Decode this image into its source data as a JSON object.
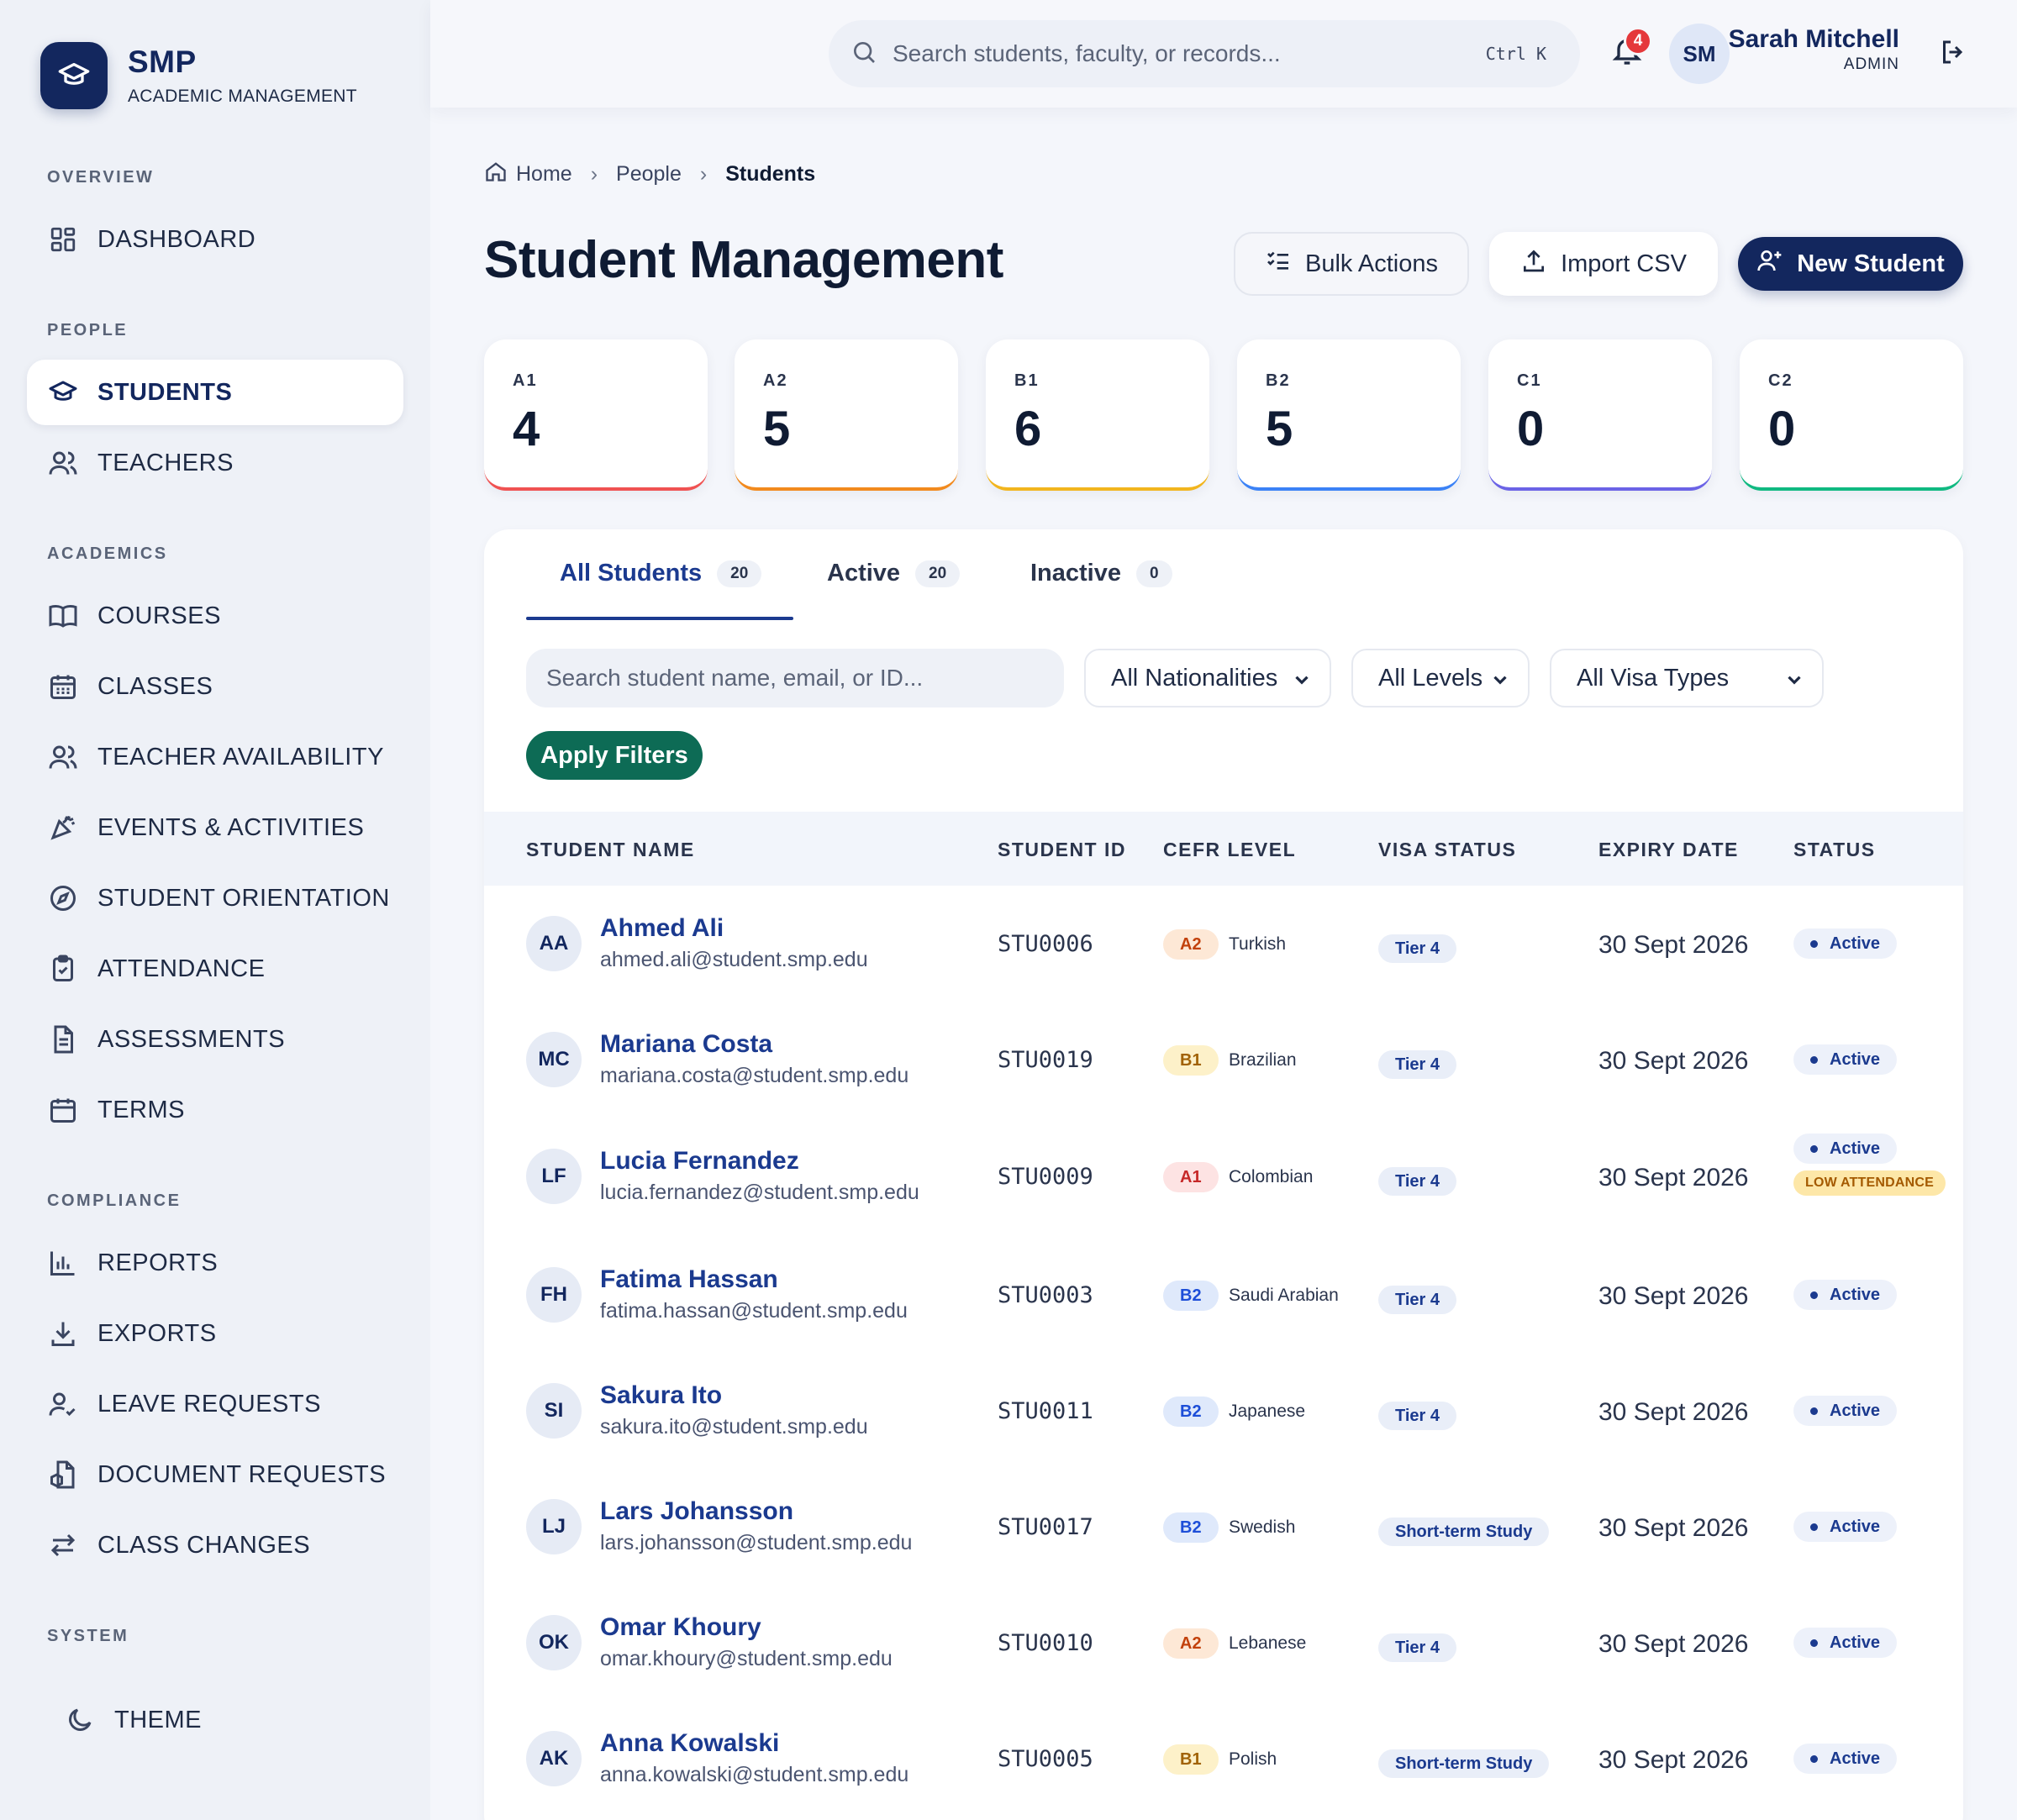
{
  "brand": {
    "name": "SMP",
    "subtitle": "ACADEMIC MANAGEMENT"
  },
  "sidebar": {
    "sections": {
      "overview": "OVERVIEW",
      "people": "PEOPLE",
      "academics": "ACADEMICS",
      "compliance": "COMPLIANCE",
      "system": "SYSTEM"
    },
    "items": {
      "dashboard": "DASHBOARD",
      "students": "STUDENTS",
      "teachers": "TEACHERS",
      "courses": "COURSES",
      "classes": "CLASSES",
      "teacher_availability": "TEACHER AVAILABILITY",
      "events": "EVENTS & ACTIVITIES",
      "orientation": "STUDENT ORIENTATION",
      "attendance": "ATTENDANCE",
      "assessments": "ASSESSMENTS",
      "terms": "TERMS",
      "reports": "REPORTS",
      "exports": "EXPORTS",
      "leave_requests": "LEAVE REQUESTS",
      "document_requests": "DOCUMENT REQUESTS",
      "class_changes": "CLASS CHANGES",
      "theme": "THEME"
    }
  },
  "topbar": {
    "search_placeholder": "Search students, faculty, or records...",
    "shortcut": "Ctrl K",
    "notification_count": "4",
    "user_initials": "SM",
    "user_name": "Sarah Mitchell",
    "user_role": "ADMIN"
  },
  "breadcrumb": {
    "home": "Home",
    "people": "People",
    "current": "Students"
  },
  "page": {
    "title": "Student Management",
    "bulk_actions": "Bulk Actions",
    "import_csv": "Import CSV",
    "new_student": "New Student"
  },
  "levels": [
    {
      "label": "A1",
      "count": "4",
      "color": "#f05252"
    },
    {
      "label": "A2",
      "count": "5",
      "color": "#f28a1e"
    },
    {
      "label": "B1",
      "count": "6",
      "color": "#f2b51e"
    },
    {
      "label": "B2",
      "count": "5",
      "color": "#3b82f6"
    },
    {
      "label": "C1",
      "count": "0",
      "color": "#6b63e6"
    },
    {
      "label": "C2",
      "count": "0",
      "color": "#10b981"
    }
  ],
  "tabs": [
    {
      "label": "All Students",
      "count": "20"
    },
    {
      "label": "Active",
      "count": "20"
    },
    {
      "label": "Inactive",
      "count": "0"
    }
  ],
  "filters": {
    "search_placeholder": "Search student name, email, or ID...",
    "nationality": "All Nationalities",
    "level": "All Levels",
    "visa": "All Visa Types",
    "apply": "Apply Filters"
  },
  "table": {
    "headers": {
      "name": "STUDENT NAME",
      "id": "STUDENT ID",
      "cefr": "CEFR LEVEL",
      "visa": "VISA STATUS",
      "expiry": "EXPIRY DATE",
      "status": "STATUS"
    },
    "rows": [
      {
        "initials": "AA",
        "name": "Ahmed Ali",
        "email": "ahmed.ali@student.smp.edu",
        "id": "STU0006",
        "level": "A2",
        "nationality": "Turkish",
        "visa": "Tier 4",
        "expiry": "30 Sept 2026",
        "status": "Active",
        "warning": ""
      },
      {
        "initials": "MC",
        "name": "Mariana Costa",
        "email": "mariana.costa@student.smp.edu",
        "id": "STU0019",
        "level": "B1",
        "nationality": "Brazilian",
        "visa": "Tier 4",
        "expiry": "30 Sept 2026",
        "status": "Active",
        "warning": ""
      },
      {
        "initials": "LF",
        "name": "Lucia Fernandez",
        "email": "lucia.fernandez@student.smp.edu",
        "id": "STU0009",
        "level": "A1",
        "nationality": "Colombian",
        "visa": "Tier 4",
        "expiry": "30 Sept 2026",
        "status": "Active",
        "warning": "LOW ATTENDANCE"
      },
      {
        "initials": "FH",
        "name": "Fatima Hassan",
        "email": "fatima.hassan@student.smp.edu",
        "id": "STU0003",
        "level": "B2",
        "nationality": "Saudi Arabian",
        "visa": "Tier 4",
        "expiry": "30 Sept 2026",
        "status": "Active",
        "warning": ""
      },
      {
        "initials": "SI",
        "name": "Sakura Ito",
        "email": "sakura.ito@student.smp.edu",
        "id": "STU0011",
        "level": "B2",
        "nationality": "Japanese",
        "visa": "Tier 4",
        "expiry": "30 Sept 2026",
        "status": "Active",
        "warning": ""
      },
      {
        "initials": "LJ",
        "name": "Lars Johansson",
        "email": "lars.johansson@student.smp.edu",
        "id": "STU0017",
        "level": "B2",
        "nationality": "Swedish",
        "visa": "Short-term Study",
        "expiry": "30 Sept 2026",
        "status": "Active",
        "warning": ""
      },
      {
        "initials": "OK",
        "name": "Omar Khoury",
        "email": "omar.khoury@student.smp.edu",
        "id": "STU0010",
        "level": "A2",
        "nationality": "Lebanese",
        "visa": "Tier 4",
        "expiry": "30 Sept 2026",
        "status": "Active",
        "warning": ""
      },
      {
        "initials": "AK",
        "name": "Anna Kowalski",
        "email": "anna.kowalski@student.smp.edu",
        "id": "STU0005",
        "level": "B1",
        "nationality": "Polish",
        "visa": "Short-term Study",
        "expiry": "30 Sept 2026",
        "status": "Active",
        "warning": ""
      }
    ]
  },
  "level_colors": {
    "A1": {
      "bg": "#fde3e3",
      "fg": "#c62828"
    },
    "A2": {
      "bg": "#fde8d6",
      "fg": "#c2410c"
    },
    "B1": {
      "bg": "#fdf1c9",
      "fg": "#a16207"
    },
    "B2": {
      "bg": "#dfe9fb",
      "fg": "#1d4ed8"
    }
  }
}
